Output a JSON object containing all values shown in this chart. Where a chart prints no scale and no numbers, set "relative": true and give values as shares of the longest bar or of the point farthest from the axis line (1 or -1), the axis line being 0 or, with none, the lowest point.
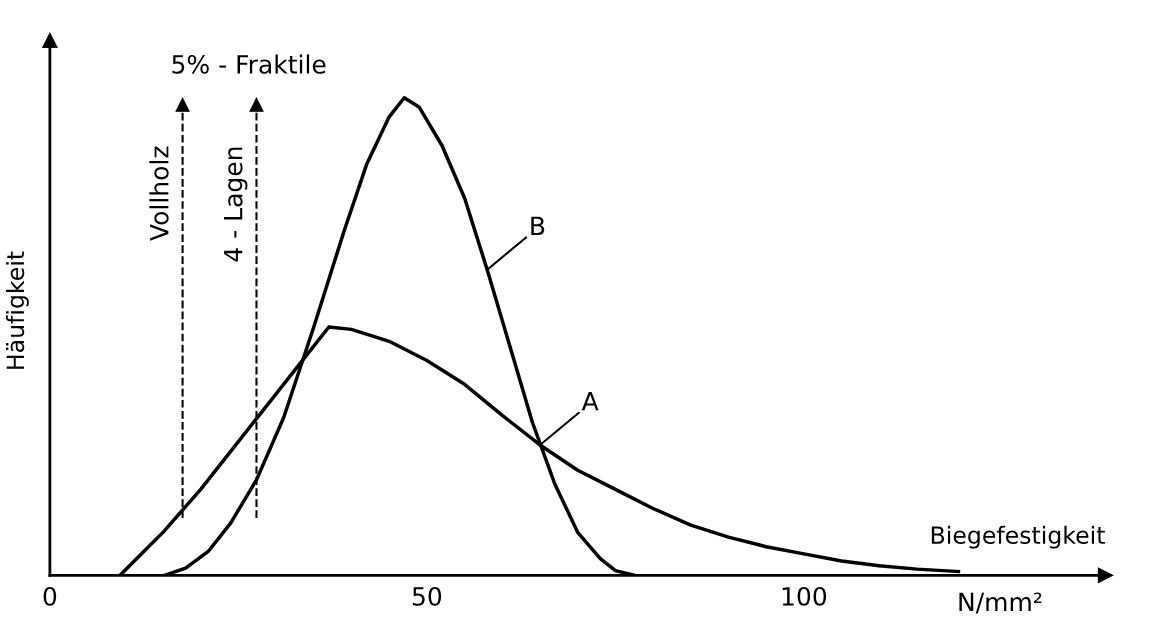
{
  "chart_data": {
    "type": "line",
    "relative": true,
    "xlabel": "Biegefestigkeit",
    "ylabel": "Häufigkeit",
    "xlim": [
      0,
      140
    ],
    "xticks": [
      0,
      50,
      100
    ],
    "grid": false,
    "legend": false,
    "marker": "none",
    "line_style": "solid",
    "series": [
      {
        "name": "A",
        "color": "#000000",
        "x": [
          9.3,
          15,
          20,
          25,
          30,
          34,
          37,
          40,
          45,
          50,
          55,
          60,
          65,
          70,
          75,
          80,
          85,
          90,
          95,
          100,
          105,
          110,
          115,
          120.5
        ],
        "values": [
          0,
          0.09,
          0.18,
          0.28,
          0.38,
          0.46,
          0.52,
          0.515,
          0.49,
          0.45,
          0.4,
          0.335,
          0.273,
          0.22,
          0.18,
          0.14,
          0.105,
          0.08,
          0.06,
          0.045,
          0.03,
          0.02,
          0.013,
          0.008
        ]
      },
      {
        "name": "B",
        "color": "#000000",
        "x": [
          15.2,
          18,
          21,
          24,
          27.4,
          31,
          35,
          39,
          42,
          45,
          47,
          49,
          52,
          55,
          58,
          61,
          64,
          67,
          70,
          73,
          75,
          77.5
        ],
        "values": [
          0,
          0.015,
          0.05,
          0.11,
          0.2,
          0.33,
          0.52,
          0.72,
          0.86,
          0.96,
          1.0,
          0.98,
          0.9,
          0.79,
          0.64,
          0.48,
          0.32,
          0.19,
          0.09,
          0.035,
          0.01,
          0
        ]
      }
    ],
    "ref_lines": [
      {
        "axis": "x",
        "value": 17.6,
        "label": "Vollholz",
        "color": "#000000",
        "line_style": "dashed"
      },
      {
        "axis": "x",
        "value": 27.4,
        "label": "4 - Lagen",
        "color": "#000000",
        "line_style": "dashed"
      }
    ],
    "annotations": [
      "5% - Fraktile",
      "N/mm²"
    ]
  }
}
